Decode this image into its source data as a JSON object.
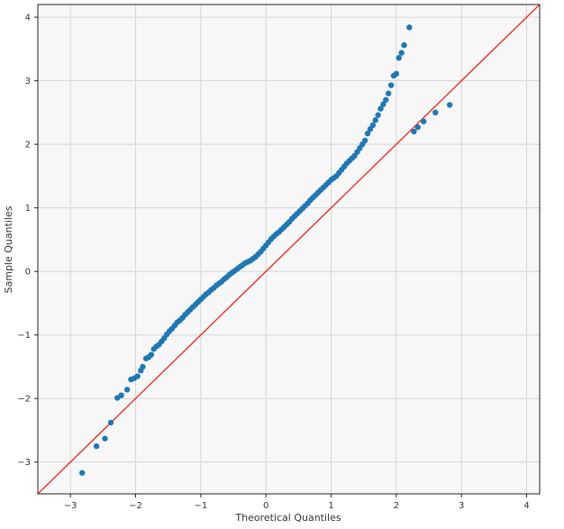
{
  "chart_data": {
    "type": "scatter",
    "title": "",
    "xlabel": "Theoretical Quantiles",
    "ylabel": "Sample Quantiles",
    "xlim": [
      -3.5,
      4.2
    ],
    "ylim": [
      -3.5,
      4.2
    ],
    "xticks": [
      -3,
      -2,
      -1,
      0,
      1,
      2,
      3,
      4
    ],
    "yticks": [
      -3,
      -2,
      -1,
      0,
      1,
      2,
      3,
      4
    ],
    "xtick_labels": [
      "−3",
      "−2",
      "−1",
      "0",
      "1",
      "2",
      "3",
      "4"
    ],
    "ytick_labels": [
      "−3",
      "−2",
      "−1",
      "0",
      "1",
      "2",
      "3",
      "4"
    ],
    "grid": true,
    "background_color": "#f7f7f7",
    "grid_color": "#d6d6d6",
    "point_color": "#1f77b4",
    "reference_line": {
      "slope": 1,
      "intercept": 0,
      "color": "#e8221c"
    },
    "series": [
      {
        "x": [
          -2.82,
          -2.6,
          -2.47,
          -2.38,
          -2.28,
          -2.22,
          -2.13,
          -2.07,
          -2.02,
          -1.97,
          -1.92,
          -1.89,
          -1.84,
          -1.8,
          -1.76,
          -1.72,
          -1.68,
          -1.64,
          -1.6,
          -1.56,
          -1.52,
          -1.48,
          -1.44,
          -1.4,
          -1.36,
          -1.32,
          -1.28,
          -1.24,
          -1.2,
          -1.16,
          -1.12,
          -1.08,
          -1.04,
          -1.0,
          -0.96,
          -0.92,
          -0.88,
          -0.84,
          -0.8,
          -0.76,
          -0.72,
          -0.68,
          -0.64,
          -0.6,
          -0.56,
          -0.52,
          -0.48,
          -0.44,
          -0.4,
          -0.36,
          -0.32,
          -0.28,
          -0.24,
          -0.2,
          -0.16,
          -0.12,
          -0.08,
          -0.04,
          0.0,
          0.04,
          0.08,
          0.12,
          0.16,
          0.2,
          0.24,
          0.28,
          0.32,
          0.36,
          0.4,
          0.44,
          0.48,
          0.52,
          0.56,
          0.6,
          0.64,
          0.68,
          0.72,
          0.76,
          0.8,
          0.84,
          0.88,
          0.92,
          0.96,
          1.0,
          1.04,
          1.08,
          1.12,
          1.16,
          1.2,
          1.24,
          1.28,
          1.32,
          1.36,
          1.4,
          1.44,
          1.48,
          1.52,
          1.56,
          1.6,
          1.64,
          1.68,
          1.72,
          1.76,
          1.8,
          1.84,
          1.88,
          1.92,
          1.96,
          2.0,
          2.04,
          2.08,
          2.12,
          2.2,
          2.27,
          2.33,
          2.42,
          2.6,
          2.82
        ],
        "y": [
          -3.17,
          -2.75,
          -2.63,
          -2.38,
          -1.99,
          -1.95,
          -1.86,
          -1.7,
          -1.68,
          -1.65,
          -1.56,
          -1.5,
          -1.37,
          -1.35,
          -1.31,
          -1.22,
          -1.18,
          -1.15,
          -1.1,
          -1.05,
          -0.99,
          -0.94,
          -0.9,
          -0.85,
          -0.8,
          -0.77,
          -0.73,
          -0.68,
          -0.64,
          -0.6,
          -0.56,
          -0.52,
          -0.48,
          -0.44,
          -0.4,
          -0.36,
          -0.33,
          -0.29,
          -0.26,
          -0.22,
          -0.19,
          -0.16,
          -0.12,
          -0.09,
          -0.05,
          -0.02,
          0.01,
          0.04,
          0.07,
          0.1,
          0.13,
          0.15,
          0.17,
          0.2,
          0.23,
          0.27,
          0.31,
          0.36,
          0.41,
          0.46,
          0.51,
          0.55,
          0.59,
          0.62,
          0.66,
          0.7,
          0.74,
          0.78,
          0.83,
          0.87,
          0.91,
          0.95,
          0.99,
          1.03,
          1.07,
          1.12,
          1.16,
          1.2,
          1.24,
          1.28,
          1.32,
          1.36,
          1.4,
          1.44,
          1.47,
          1.5,
          1.55,
          1.6,
          1.65,
          1.7,
          1.74,
          1.78,
          1.82,
          1.88,
          1.94,
          2.0,
          2.06,
          2.17,
          2.24,
          2.3,
          2.38,
          2.46,
          2.56,
          2.63,
          2.7,
          2.8,
          2.93,
          3.08,
          3.11,
          3.36,
          3.44,
          3.56,
          3.84,
          2.2,
          2.27,
          2.36,
          2.5,
          2.62
        ]
      }
    ]
  }
}
